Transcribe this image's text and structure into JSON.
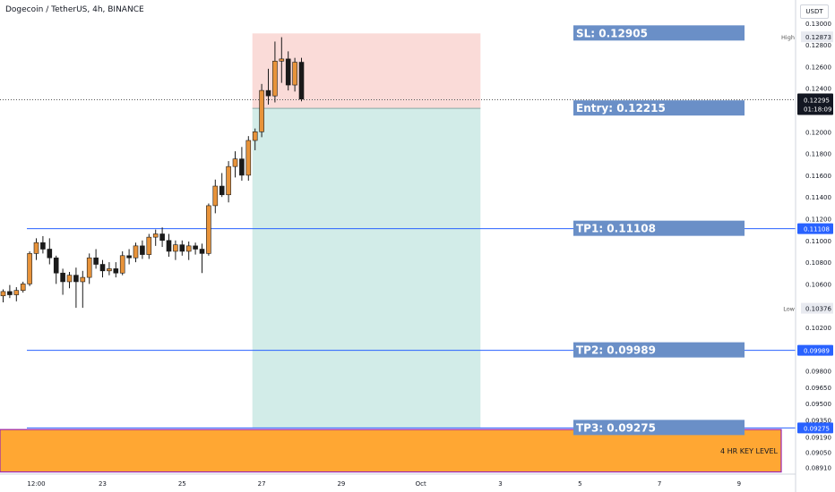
{
  "header": {
    "title": "Dogecoin / TetherUS, 4h, BINANCE",
    "currency": "USDT"
  },
  "colors": {
    "up": "#e8933a",
    "down": "#1a1a1a",
    "line": "#2962ff",
    "risk": "#fadbd8",
    "reward": "#d2ece8",
    "label_bg": "#6a8fc7",
    "key_fill": "#ffa733",
    "key_border": "#9c27b0"
  },
  "chart_data": {
    "type": "candlestick",
    "ylim": [
      0.0885,
      0.1313
    ],
    "y_ticks": [
      0.13,
      0.128,
      0.126,
      0.124,
      0.122,
      0.12,
      0.118,
      0.116,
      0.114,
      0.112,
      0.11,
      0.108,
      0.106,
      0.104,
      0.102,
      0.1,
      0.098,
      0.0965,
      0.095,
      0.0935,
      0.0919,
      0.0905,
      0.0891
    ],
    "y_tick_labels": [
      "0.13000",
      "0.12800",
      "0.12600",
      "0.12400",
      "0.12200",
      "0.12000",
      "0.11800",
      "0.11600",
      "0.11400",
      "0.11200",
      "0.11000",
      "0.10800",
      "0.10600",
      "0.10400",
      "0.10200",
      "0.10000",
      "0.09800",
      "0.09650",
      "0.09500",
      "0.09350",
      "0.09190",
      "0.09050",
      "0.08910"
    ],
    "x_ticks": [
      {
        "pos": 5,
        "label": "12:00"
      },
      {
        "pos": 15,
        "label": "23"
      },
      {
        "pos": 27,
        "label": "25"
      },
      {
        "pos": 39,
        "label": "27"
      },
      {
        "pos": 51,
        "label": "29"
      },
      {
        "pos": 63,
        "label": "Oct"
      },
      {
        "pos": 75,
        "label": "3"
      },
      {
        "pos": 87,
        "label": "5"
      },
      {
        "pos": 99,
        "label": "7"
      },
      {
        "pos": 111,
        "label": "9"
      }
    ],
    "candles": [
      [
        0.1049,
        0.1055,
        0.1043,
        0.1053
      ],
      [
        0.1053,
        0.1059,
        0.1047,
        0.105
      ],
      [
        0.105,
        0.1057,
        0.1044,
        0.1054
      ],
      [
        0.1054,
        0.1062,
        0.1052,
        0.106
      ],
      [
        0.106,
        0.109,
        0.1058,
        0.1088
      ],
      [
        0.1088,
        0.1102,
        0.1082,
        0.1098
      ],
      [
        0.1098,
        0.1104,
        0.1088,
        0.1092
      ],
      [
        0.1092,
        0.1102,
        0.1078,
        0.1084
      ],
      [
        0.1084,
        0.1086,
        0.106,
        0.107
      ],
      [
        0.107,
        0.1074,
        0.105,
        0.1062
      ],
      [
        0.1062,
        0.1071,
        0.1056,
        0.1068
      ],
      [
        0.1068,
        0.1075,
        0.1038,
        0.1062
      ],
      [
        0.1062,
        0.1072,
        0.1038,
        0.1066
      ],
      [
        0.1066,
        0.1088,
        0.106,
        0.1084
      ],
      [
        0.1084,
        0.1092,
        0.1074,
        0.1078
      ],
      [
        0.1078,
        0.1082,
        0.1066,
        0.1072
      ],
      [
        0.1072,
        0.108,
        0.1068,
        0.1074
      ],
      [
        0.1074,
        0.108,
        0.1066,
        0.107
      ],
      [
        0.107,
        0.109,
        0.1068,
        0.1086
      ],
      [
        0.1086,
        0.1092,
        0.1078,
        0.1084
      ],
      [
        0.1084,
        0.1098,
        0.108,
        0.1095
      ],
      [
        0.1095,
        0.11,
        0.1083,
        0.1087
      ],
      [
        0.1087,
        0.1106,
        0.1083,
        0.1103
      ],
      [
        0.1103,
        0.111,
        0.1095,
        0.1106
      ],
      [
        0.1106,
        0.1112,
        0.1094,
        0.11
      ],
      [
        0.11,
        0.1106,
        0.1085,
        0.109
      ],
      [
        0.109,
        0.11,
        0.1082,
        0.1096
      ],
      [
        0.1096,
        0.11,
        0.1086,
        0.109
      ],
      [
        0.109,
        0.1099,
        0.1082,
        0.1095
      ],
      [
        0.1095,
        0.1098,
        0.1087,
        0.1092
      ],
      [
        0.1092,
        0.1097,
        0.107,
        0.1088
      ],
      [
        0.1088,
        0.1134,
        0.1086,
        0.1132
      ],
      [
        0.1132,
        0.1156,
        0.1125,
        0.115
      ],
      [
        0.115,
        0.1162,
        0.114,
        0.1142
      ],
      [
        0.1142,
        0.1173,
        0.1135,
        0.1168
      ],
      [
        0.1168,
        0.1182,
        0.1158,
        0.1175
      ],
      [
        0.1175,
        0.1186,
        0.1155,
        0.116
      ],
      [
        0.116,
        0.1196,
        0.1155,
        0.1192
      ],
      [
        0.1192,
        0.1203,
        0.1183,
        0.12
      ],
      [
        0.12,
        0.1244,
        0.1195,
        0.1238
      ],
      [
        0.1238,
        0.1258,
        0.1225,
        0.1233
      ],
      [
        0.1233,
        0.1283,
        0.1227,
        0.1265
      ],
      [
        0.1265,
        0.1287,
        0.1245,
        0.1267
      ],
      [
        0.1267,
        0.1274,
        0.1238,
        0.1243
      ],
      [
        0.1243,
        0.1268,
        0.1237,
        0.1264
      ],
      [
        0.1264,
        0.1268,
        0.1228,
        0.123
      ]
    ],
    "levels": [
      {
        "value": 0.11108,
        "label": "0.11108"
      },
      {
        "value": 0.09989,
        "label": "0.09989"
      },
      {
        "value": 0.09275,
        "label": "0.09275"
      }
    ],
    "position": {
      "start_pos": 38,
      "end_pos": 72,
      "sl": 0.12905,
      "entry": 0.12215,
      "target": 0.09275,
      "labels": [
        "SL: 0.12905",
        "Entry: 0.12215",
        "TP1: 0.11108",
        "TP2: 0.09989",
        "TP3: 0.09275"
      ],
      "label_values": [
        0.12905,
        0.12215,
        0.11108,
        0.09989,
        0.09275
      ]
    },
    "current_price": {
      "value": 0.12295,
      "label": "0.12295",
      "countdown": "01:18:09"
    },
    "high": {
      "label": "High",
      "value": 0.12873,
      "value_label": "0.12873"
    },
    "low": {
      "label": "Low",
      "value": 0.10376,
      "value_label": "0.10376"
    },
    "key_level": {
      "label": "4 HR KEY LEVEL",
      "top": 0.0926,
      "bottom": 0.0887
    }
  }
}
